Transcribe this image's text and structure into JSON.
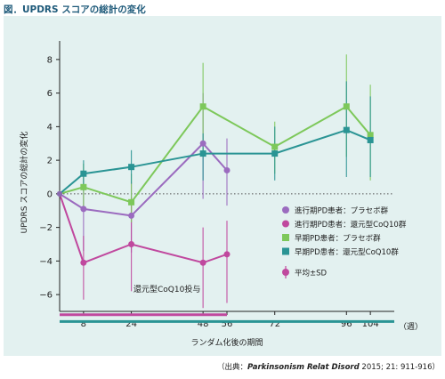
{
  "figure": {
    "title": "図．UPDRS スコアの総計の変化"
  },
  "source": {
    "prefix": "（出典：",
    "journal": "Parkinsonism Relat Disord",
    "rest": " 2015; 21: 911-916）"
  },
  "chart_data": {
    "type": "line",
    "title": "",
    "xlabel": "ランダム化後の期間",
    "x_unit": "（週）",
    "ylabel": "UPDRS スコアの総計の変化",
    "ylim": [
      -7,
      9
    ],
    "yticks": [
      -6,
      -4,
      -2,
      0,
      2,
      4,
      6,
      8
    ],
    "xticks": [
      8,
      24,
      48,
      56,
      72,
      96,
      104
    ],
    "xlim": [
      0,
      112
    ],
    "zero_line": "dotted",
    "legend_position": "right-middle",
    "series": [
      {
        "name": "進行期PD患者：プラセボ群",
        "color": "#9b6bbf",
        "marker": "circle",
        "x": [
          0,
          8,
          24,
          48,
          56
        ],
        "y": [
          0,
          -0.9,
          -1.3,
          3.0,
          1.4
        ],
        "err_low": [
          0,
          -3.4,
          -3.5,
          -0.3,
          -0.7
        ],
        "err_high": [
          0,
          1.3,
          0.7,
          6.0,
          3.3
        ]
      },
      {
        "name": "進行期PD患者：還元型CoQ10群",
        "color": "#c0489e",
        "marker": "circle",
        "x": [
          0,
          8,
          24,
          48,
          56
        ],
        "y": [
          0,
          -4.1,
          -3.0,
          -4.1,
          -3.6
        ],
        "err_low": [
          0,
          -6.3,
          -5.8,
          -6.8,
          -6.5
        ],
        "err_high": [
          0,
          -2.5,
          -0.2,
          -2.0,
          -1.6
        ]
      },
      {
        "name": "早期PD患者：プラセボ群",
        "color": "#7dc85a",
        "marker": "square",
        "x": [
          0,
          8,
          24,
          48,
          72,
          96,
          104
        ],
        "y": [
          0,
          0.4,
          -0.5,
          5.2,
          2.8,
          5.2,
          3.5
        ],
        "err_low": [
          0,
          -1.0,
          -1.7,
          2.2,
          1.2,
          2.2,
          0.8
        ],
        "err_high": [
          0,
          1.8,
          1.2,
          7.8,
          4.3,
          8.3,
          6.5
        ]
      },
      {
        "name": "早期PD患者：還元型CoQ10群",
        "color": "#2a9494",
        "marker": "square",
        "x": [
          0,
          8,
          24,
          48,
          72,
          96,
          104
        ],
        "y": [
          0,
          1.2,
          1.6,
          2.4,
          2.4,
          3.8,
          3.2
        ],
        "err_low": [
          0,
          0.2,
          0.6,
          0.8,
          0.8,
          1.0,
          1.0
        ],
        "err_high": [
          0,
          2.0,
          2.6,
          3.6,
          4.0,
          6.7,
          5.8
        ]
      }
    ],
    "sd_legend": {
      "label": "平均±SD",
      "color": "#c0489e"
    },
    "dosing_bars": {
      "label": "還元型CoQ10投与",
      "bars": [
        {
          "color": "#c0489e",
          "y": -7.2,
          "x_start": 0,
          "x_end": 56
        },
        {
          "color": "#2a9494",
          "y": -7.6,
          "x_start": 0,
          "x_end": 112
        }
      ]
    }
  }
}
